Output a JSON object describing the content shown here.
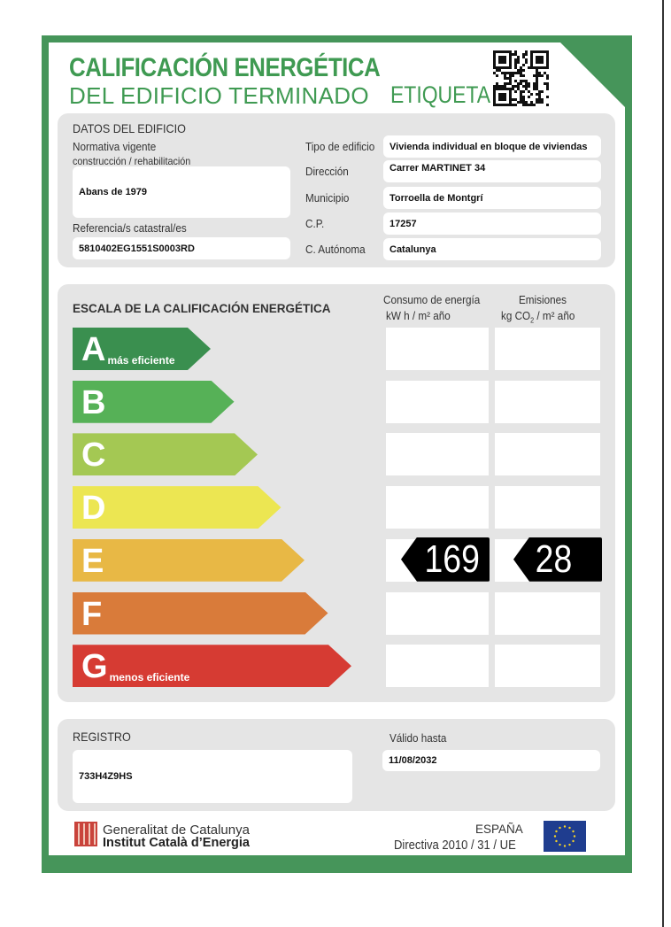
{
  "header": {
    "title_line1": "CALIFICACIÓN ENERGÉTICA",
    "title_line2": "DEL EDIFICIO TERMINADO",
    "label": "ETIQUETA",
    "qr_icon": "qr-code"
  },
  "building": {
    "section_title": "DATOS DEL EDIFICIO",
    "normativa_label1": "Normativa vigente",
    "normativa_label2": "construcción / rehabilitación",
    "normativa_value": "Abans de 1979",
    "referencia_label": "Referencia/s catastral/es",
    "referencia_value": "5810402EG1551S0003RD",
    "fields": [
      {
        "label": "Tipo de edificio",
        "value": "Vivienda individual en bloque de viviendas"
      },
      {
        "label": "Dirección",
        "value": "Carrer MARTINET 34"
      },
      {
        "label": "Municipio",
        "value": "Torroella de Montgrí"
      },
      {
        "label": "C.P.",
        "value": "17257"
      },
      {
        "label": "C. Autónoma",
        "value": "Catalunya"
      }
    ]
  },
  "scale": {
    "title": "ESCALA DE LA CALIFICACIÓN ENERGÉTICA",
    "consumo_header1": "Consumo de energía",
    "consumo_header2": "kW h  / m² año",
    "emisiones_header1": "Emisiones",
    "emisiones_header2a": "kg CO",
    "emisiones_header2sub": "2",
    "emisiones_header2b": " / m² año",
    "classes": [
      {
        "letter": "A",
        "sub": "más eficiente",
        "color": "#3a8f4f"
      },
      {
        "letter": "B",
        "sub": "",
        "color": "#56b157"
      },
      {
        "letter": "C",
        "sub": "",
        "color": "#a4c853"
      },
      {
        "letter": "D",
        "sub": "",
        "color": "#ece652"
      },
      {
        "letter": "E",
        "sub": "",
        "color": "#e8b845"
      },
      {
        "letter": "F",
        "sub": "",
        "color": "#d97b3a"
      },
      {
        "letter": "G",
        "sub": "menos eficiente",
        "color": "#d63b33"
      }
    ],
    "rating_class": "E",
    "consumo_value": "169",
    "emisiones_value": "28"
  },
  "registro": {
    "label": "REGISTRO",
    "value": "733H4Z9HS",
    "valido_label": "Válido hasta",
    "valido_value": "11/08/2032"
  },
  "footer": {
    "org1": "Generalitat de Catalunya",
    "org2": "Institut Català d’Energia",
    "country": "ESPAÑA",
    "directive": "Directiva 2010 / 31 / UE",
    "flag_icon": "eu-flag"
  },
  "colors": {
    "brand_green": "#46955a",
    "panel_gray": "#e5e5e5"
  }
}
